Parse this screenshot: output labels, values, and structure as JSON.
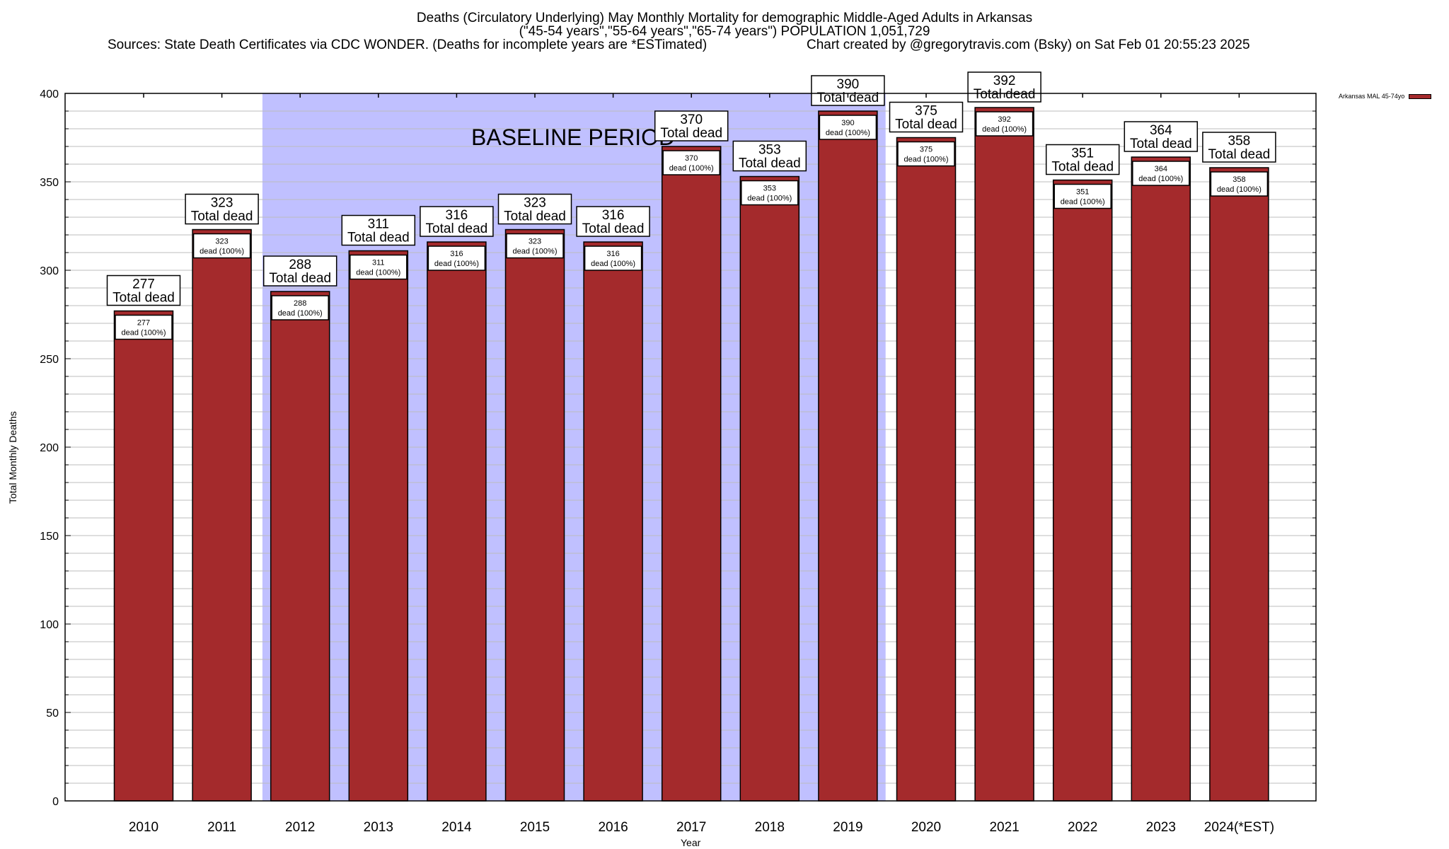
{
  "header": {
    "title_line1": "Deaths (Circulatory Underlying) May Monthly Mortality for demographic Middle-Aged Adults in Arkansas",
    "title_line2": "(\"45-54 years\",\"55-64 years\",\"65-74 years\") POPULATION 1,051,729",
    "sources": "Sources: State Death Certificates via CDC WONDER. (Deaths for incomplete years are *ESTimated)",
    "credit": "Chart created by @gregorytravis.com (Bsky) on Sat Feb 01 20:55:23 2025"
  },
  "chart_data": {
    "type": "bar",
    "title": "Deaths (Circulatory Underlying) May Monthly Mortality for demographic Middle-Aged Adults in Arkansas",
    "xlabel": "Year",
    "ylabel": "Total Monthly Deaths",
    "ylim": [
      0,
      400
    ],
    "y_ticks": [
      0,
      50,
      100,
      150,
      200,
      250,
      300,
      350,
      400
    ],
    "y_minor_step": 10,
    "grid": true,
    "legend_position": "top-right",
    "categories": [
      "2010",
      "2011",
      "2012",
      "2013",
      "2014",
      "2015",
      "2016",
      "2017",
      "2018",
      "2019",
      "2020",
      "2021",
      "2022",
      "2023",
      "2024(*EST)"
    ],
    "series": [
      {
        "name": "Arkansas MAL 45-74yo",
        "color": "#a42a2c",
        "values": [
          277,
          323,
          288,
          311,
          316,
          323,
          316,
          370,
          353,
          390,
          375,
          392,
          351,
          364,
          358
        ]
      }
    ],
    "total_label_suffix": "Total dead",
    "inner_label_suffix": "dead (100%)",
    "annotations": [
      {
        "text": "BASELINE PERIOD",
        "type": "shaded-region",
        "from_category": "2012",
        "to_category": "2019",
        "color": "#c0c0ff"
      }
    ]
  }
}
